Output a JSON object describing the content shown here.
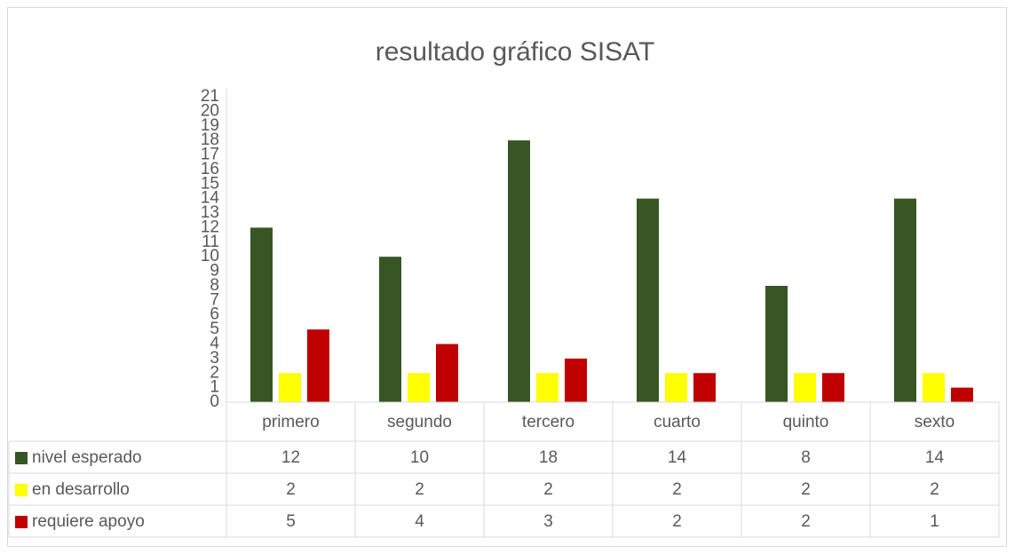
{
  "chart_data": {
    "type": "bar",
    "title": "resultado gráfico SISAT",
    "categories": [
      "primero",
      "segundo",
      "tercero",
      "cuarto",
      "quinto",
      "sexto"
    ],
    "series": [
      {
        "name": "nivel esperado",
        "color": "#375623",
        "values": [
          12,
          10,
          18,
          14,
          8,
          14
        ]
      },
      {
        "name": "en desarrollo",
        "color": "#ffff00",
        "values": [
          2,
          2,
          2,
          2,
          2,
          2
        ]
      },
      {
        "name": "requiere apoyo",
        "color": "#c00000",
        "values": [
          5,
          4,
          3,
          2,
          2,
          1
        ]
      }
    ],
    "ylim": [
      0,
      21
    ],
    "yticks": [
      0,
      1,
      2,
      3,
      4,
      5,
      6,
      7,
      8,
      9,
      10,
      11,
      12,
      13,
      14,
      15,
      16,
      17,
      18,
      19,
      20,
      21
    ],
    "grid": false,
    "data_table": true
  }
}
